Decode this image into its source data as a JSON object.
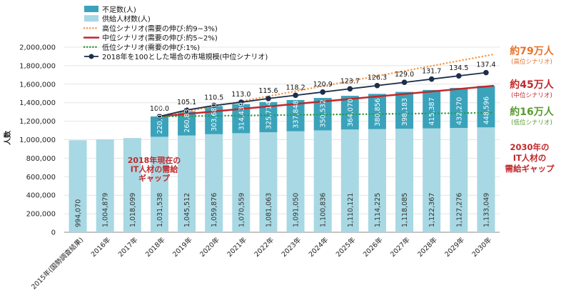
{
  "chart_data": {
    "type": "bar",
    "categories": [
      "2015年(国勢調査結果)",
      "2016年",
      "2017年",
      "2018年",
      "2019年",
      "2020年",
      "2021年",
      "2022年",
      "2023年",
      "2024年",
      "2025年",
      "2026年",
      "2027年",
      "2028年",
      "2029年",
      "2030年"
    ],
    "stacked": true,
    "series": [
      {
        "name": "供給人材数(人)",
        "color": "#a8d8e3",
        "values": [
          994070,
          1004879,
          1018099,
          1031538,
          1045512,
          1059876,
          1070559,
          1081063,
          1091050,
          1100836,
          1110121,
          1114225,
          1118085,
          1122367,
          1127276,
          1133049
        ]
      },
      {
        "name": "不足数(人)",
        "color": "#3aa3bb",
        "values": [
          null,
          null,
          null,
          220000,
          260835,
          303680,
          314439,
          325714,
          337848,
          350532,
          364070,
          380856,
          398183,
          415387,
          432270,
          448596
        ]
      }
    ],
    "labels": {
      "supply": [
        "994,070",
        "1,004,879",
        "1,018,099",
        "1,031,538",
        "1,045,512",
        "1,059,876",
        "1,070,559",
        "1,081,063",
        "1,091,050",
        "1,100,836",
        "1,110,121",
        "1,114,225",
        "1,118,085",
        "1,122,367",
        "1,127,276",
        "1,133,049"
      ],
      "shortage": [
        "",
        "",
        "",
        "220,000",
        "260,835",
        "303,680",
        "314,439",
        "325,714",
        "337,848",
        "350,532",
        "364,070",
        "380,856",
        "398,183",
        "415,387",
        "432,270",
        "448,596"
      ]
    },
    "lines": [
      {
        "name": "高位シナリオ(需要の伸び:約9~3%)",
        "color": "#f59a4f",
        "style": "dotted",
        "x": [
          "2018年",
          "2030年"
        ],
        "y": [
          1251538,
          1921049
        ]
      },
      {
        "name": "中位シナリオ(需要の伸び:約5~2%)",
        "color": "#c0292c",
        "style": "solid",
        "x": [
          "2018年",
          "2030年"
        ],
        "y": [
          1251538,
          1581645
        ]
      },
      {
        "name": "低位シナリオ(需要の伸び:1%)",
        "color": "#2e9a3e",
        "style": "dotted",
        "x": [
          "2018年",
          "2030年"
        ],
        "y": [
          1251538,
          1291538
        ]
      }
    ],
    "market_index": {
      "name": "2018年を100とした場合の市場規模(中位シナリオ)",
      "color": "#1c2e4a",
      "x": [
        "2018年",
        "2019年",
        "2020年",
        "2021年",
        "2022年",
        "2023年",
        "2024年",
        "2025年",
        "2026年",
        "2027年",
        "2028年",
        "2029年",
        "2030年"
      ],
      "values": [
        100.0,
        105.1,
        110.5,
        113.0,
        115.6,
        118.2,
        120.9,
        123.7,
        126.3,
        129.0,
        131.7,
        134.5,
        137.4
      ],
      "value_labels": [
        "100.0",
        "105.1",
        "110.5",
        "113.0",
        "115.6",
        "118.2",
        "120.9",
        "123.7",
        "126.3",
        "129.0",
        "131.7",
        "134.5",
        "137.4"
      ],
      "plot_y": [
        1251538,
        1320000,
        1370000,
        1405000,
        1445000,
        1480000,
        1515000,
        1550000,
        1585000,
        1620000,
        1655000,
        1690000,
        1725000
      ]
    },
    "ylabel": "人数",
    "ylim": [
      0,
      2000000
    ],
    "yticks": [
      "0",
      "200,000",
      "400,000",
      "600,000",
      "800,000",
      "1,000,000",
      "1,200,000",
      "1,400,000",
      "1,600,000",
      "1,800,000",
      "2,000,000"
    ],
    "legend_position": "top-left",
    "annotations": {
      "gap2018": [
        "2018年現在の",
        "IT人材の需給",
        "ギャップ"
      ],
      "gap2030": [
        "2030年の",
        "IT人材の",
        "需給ギャップ"
      ],
      "high": {
        "big": "約79万人",
        "small": "(高位シナリオ)",
        "color": "#e8722b"
      },
      "mid": {
        "big": "約45万人",
        "small": "(中位シナリオ)",
        "color": "#c0292c"
      },
      "low": {
        "big": "約16万人",
        "small": "(低位シナリオ)",
        "color": "#5a9a2e"
      }
    }
  }
}
